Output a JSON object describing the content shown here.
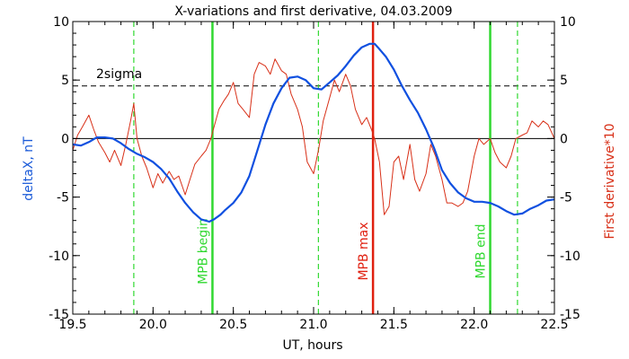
{
  "chart_data": {
    "type": "line",
    "title": "X-variations and first derivative, 04.03.2009",
    "xlabel": "UT, hours",
    "ylabel_left": "deltaX, nT",
    "ylabel_right": "First derivative*10",
    "xlim": [
      19.5,
      22.5
    ],
    "ylim": [
      -15,
      10
    ],
    "x_ticks": [
      19.5,
      20.0,
      20.5,
      21.0,
      21.5,
      22.0,
      22.5
    ],
    "x_tick_labels": [
      "19.5",
      "20.0",
      "20.5",
      "21.0",
      "21.5",
      "22.0",
      "22.5"
    ],
    "y_ticks": [
      -15,
      -10,
      -5,
      0,
      5,
      10
    ],
    "y_tick_labels": [
      "-15",
      "-10",
      "-5",
      "0",
      "5",
      "10"
    ],
    "colors": {
      "deltaX": "#1050e0",
      "derivative": "#d83018",
      "mpb": "#30d830",
      "max": "#e02010",
      "left_label": "#1a5ad8",
      "right_label": "#d83018"
    },
    "sigma_line": {
      "label": "2sigma",
      "y": 4.5
    },
    "zero_line": {
      "y": 0
    },
    "vertical_lines": [
      {
        "x": 19.88,
        "style": "dashed",
        "color": "#30d830",
        "label": ""
      },
      {
        "x": 20.37,
        "style": "solid",
        "color": "#30d830",
        "label": "MPB begin"
      },
      {
        "x": 21.03,
        "style": "dashed",
        "color": "#30d830",
        "label": ""
      },
      {
        "x": 21.37,
        "style": "solid",
        "color": "#e02010",
        "label": "MPB max"
      },
      {
        "x": 22.1,
        "style": "solid",
        "color": "#30d830",
        "label": "MPB end"
      },
      {
        "x": 22.27,
        "style": "dashed",
        "color": "#30d830",
        "label": ""
      }
    ],
    "series": [
      {
        "name": "deltaX, nT",
        "x": [
          19.5,
          19.55,
          19.6,
          19.65,
          19.7,
          19.75,
          19.8,
          19.85,
          19.9,
          19.95,
          20.0,
          20.05,
          20.1,
          20.15,
          20.2,
          20.25,
          20.3,
          20.35,
          20.38,
          20.42,
          20.45,
          20.5,
          20.55,
          20.6,
          20.65,
          20.7,
          20.75,
          20.8,
          20.85,
          20.9,
          20.95,
          21.0,
          21.05,
          21.1,
          21.15,
          21.2,
          21.25,
          21.3,
          21.35,
          21.38,
          21.4,
          21.45,
          21.5,
          21.55,
          21.6,
          21.65,
          21.7,
          21.75,
          21.8,
          21.85,
          21.9,
          21.95,
          22.0,
          22.05,
          22.1,
          22.15,
          22.2,
          22.25,
          22.3,
          22.35,
          22.4,
          22.45,
          22.5
        ],
        "values": [
          -0.5,
          -0.6,
          -0.3,
          0.1,
          0.1,
          0.0,
          -0.4,
          -0.9,
          -1.3,
          -1.6,
          -2.0,
          -2.6,
          -3.4,
          -4.5,
          -5.5,
          -6.3,
          -6.9,
          -7.1,
          -6.9,
          -6.5,
          -6.1,
          -5.5,
          -4.6,
          -3.2,
          -1.0,
          1.2,
          3.0,
          4.3,
          5.2,
          5.3,
          5.0,
          4.3,
          4.2,
          4.8,
          5.4,
          6.2,
          7.1,
          7.8,
          8.1,
          8.1,
          7.8,
          7.0,
          5.9,
          4.5,
          3.3,
          2.2,
          0.8,
          -0.8,
          -2.7,
          -3.8,
          -4.6,
          -5.1,
          -5.4,
          -5.4,
          -5.5,
          -5.8,
          -6.2,
          -6.5,
          -6.4,
          -6.0,
          -5.7,
          -5.3,
          -5.2
        ]
      },
      {
        "name": "First derivative*10",
        "x": [
          19.5,
          19.53,
          19.56,
          19.6,
          19.63,
          19.66,
          19.7,
          19.73,
          19.76,
          19.8,
          19.83,
          19.86,
          19.88,
          19.9,
          19.93,
          19.96,
          20.0,
          20.03,
          20.06,
          20.1,
          20.13,
          20.16,
          20.2,
          20.23,
          20.26,
          20.3,
          20.33,
          20.36,
          20.38,
          20.41,
          20.44,
          20.47,
          20.5,
          20.53,
          20.56,
          20.6,
          20.63,
          20.66,
          20.7,
          20.73,
          20.76,
          20.8,
          20.83,
          20.86,
          20.9,
          20.93,
          20.96,
          21.0,
          21.03,
          21.06,
          21.1,
          21.13,
          21.16,
          21.2,
          21.23,
          21.26,
          21.3,
          21.33,
          21.36,
          21.38,
          21.41,
          21.44,
          21.47,
          21.5,
          21.53,
          21.56,
          21.6,
          21.63,
          21.66,
          21.7,
          21.73,
          21.76,
          21.8,
          21.83,
          21.86,
          21.9,
          21.93,
          21.96,
          22.0,
          22.03,
          22.06,
          22.1,
          22.13,
          22.16,
          22.2,
          22.23,
          22.26,
          22.3,
          22.33,
          22.36,
          22.4,
          22.43,
          22.46,
          22.5
        ],
        "values": [
          -1.0,
          0.3,
          1.0,
          2.0,
          0.8,
          -0.3,
          -1.2,
          -2.0,
          -1.0,
          -2.3,
          -0.5,
          1.5,
          3.0,
          0.0,
          -1.5,
          -2.5,
          -4.2,
          -3.0,
          -3.8,
          -2.8,
          -3.5,
          -3.2,
          -4.8,
          -3.5,
          -2.2,
          -1.5,
          -1.0,
          0.0,
          1.0,
          2.5,
          3.2,
          3.8,
          4.8,
          3.0,
          2.5,
          1.8,
          5.5,
          6.5,
          6.2,
          5.5,
          6.8,
          5.8,
          5.5,
          3.8,
          2.5,
          1.0,
          -2.0,
          -3.0,
          -1.0,
          1.5,
          3.5,
          5.0,
          4.0,
          5.5,
          4.5,
          2.5,
          1.2,
          1.8,
          0.8,
          0.0,
          -2.0,
          -6.5,
          -5.8,
          -2.0,
          -1.5,
          -3.5,
          -0.5,
          -3.5,
          -4.5,
          -3.0,
          -0.5,
          -1.5,
          -3.5,
          -5.5,
          -5.5,
          -5.8,
          -5.5,
          -4.5,
          -1.5,
          0.0,
          -0.5,
          0.0,
          -1.2,
          -2.0,
          -2.5,
          -1.5,
          0.0,
          0.3,
          0.5,
          1.5,
          1.0,
          1.5,
          1.2,
          0.0
        ]
      }
    ]
  }
}
